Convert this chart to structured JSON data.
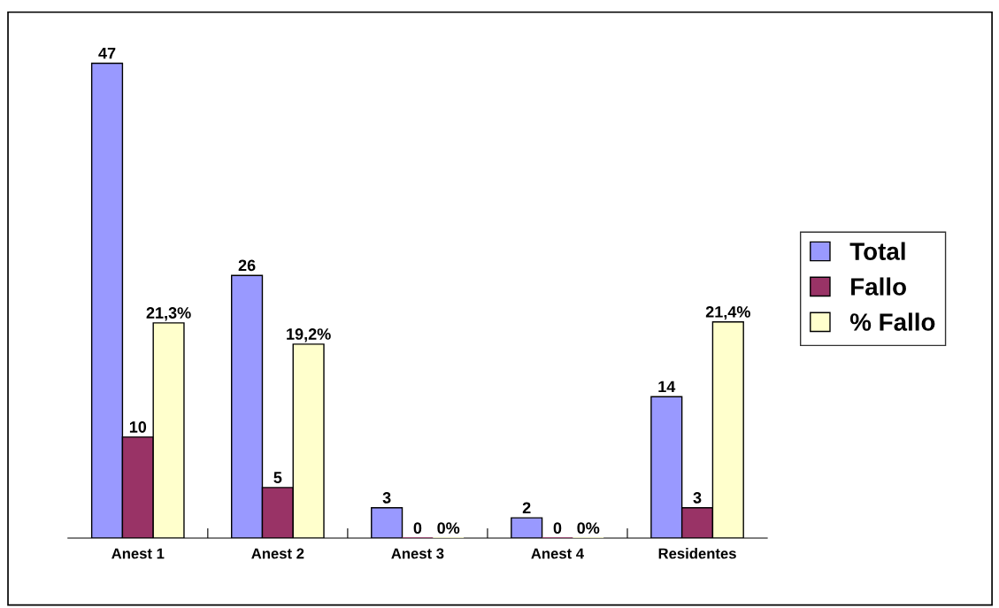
{
  "chart_data": {
    "type": "bar",
    "categories": [
      "Anest 1",
      "Anest 2",
      "Anest 3",
      "Anest 4",
      "Residentes"
    ],
    "series": [
      {
        "name": "Total",
        "color": "#9999ff",
        "values": [
          47,
          26,
          3,
          2,
          14
        ],
        "value_labels": [
          "47",
          "26",
          "3",
          "2",
          "14"
        ]
      },
      {
        "name": "Fallo",
        "color": "#993366",
        "values": [
          10,
          5,
          0,
          0,
          3
        ],
        "value_labels": [
          "10",
          "5",
          "0",
          "0",
          "3"
        ]
      },
      {
        "name": "% Fallo",
        "color": "#ffffcc",
        "values": [
          21.3,
          19.2,
          0,
          0,
          21.4
        ],
        "value_labels": [
          "21,3%",
          "19,2%",
          "0%",
          "0%",
          "21,4%"
        ]
      }
    ],
    "legend": "right",
    "grid": false
  }
}
